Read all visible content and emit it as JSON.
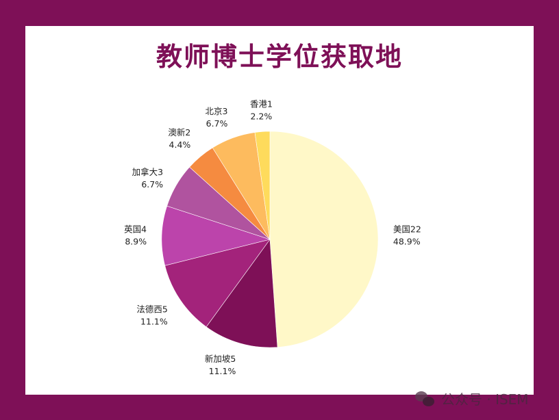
{
  "title": "教师博士学位获取地",
  "watermark": "公众号 · ISEM",
  "colors": {
    "background": "#7e1057",
    "panel": "#ffffff",
    "title": "#7e1057"
  },
  "chart_data": {
    "type": "pie",
    "title": "教师博士学位获取地",
    "start": "12 o'clock, clockwise",
    "slices": [
      {
        "label": "美国",
        "value": 22,
        "percent": "48.9%",
        "color": "#fff8c8"
      },
      {
        "label": "新加坡",
        "value": 5,
        "percent": "11.1%",
        "color": "#7e1057"
      },
      {
        "label": "法德西",
        "value": 5,
        "percent": "11.1%",
        "color": "#a3237b"
      },
      {
        "label": "英国",
        "value": 4,
        "percent": "8.9%",
        "color": "#bc44ab"
      },
      {
        "label": "加拿大",
        "value": 3,
        "percent": "6.7%",
        "color": "#b0539f"
      },
      {
        "label": "澳新",
        "value": 2,
        "percent": "4.4%",
        "color": "#f58b40"
      },
      {
        "label": "北京",
        "value": 3,
        "percent": "6.7%",
        "color": "#fdbb5e"
      },
      {
        "label": "香港",
        "value": 1,
        "percent": "2.2%",
        "color": "#fedb5c"
      }
    ]
  }
}
